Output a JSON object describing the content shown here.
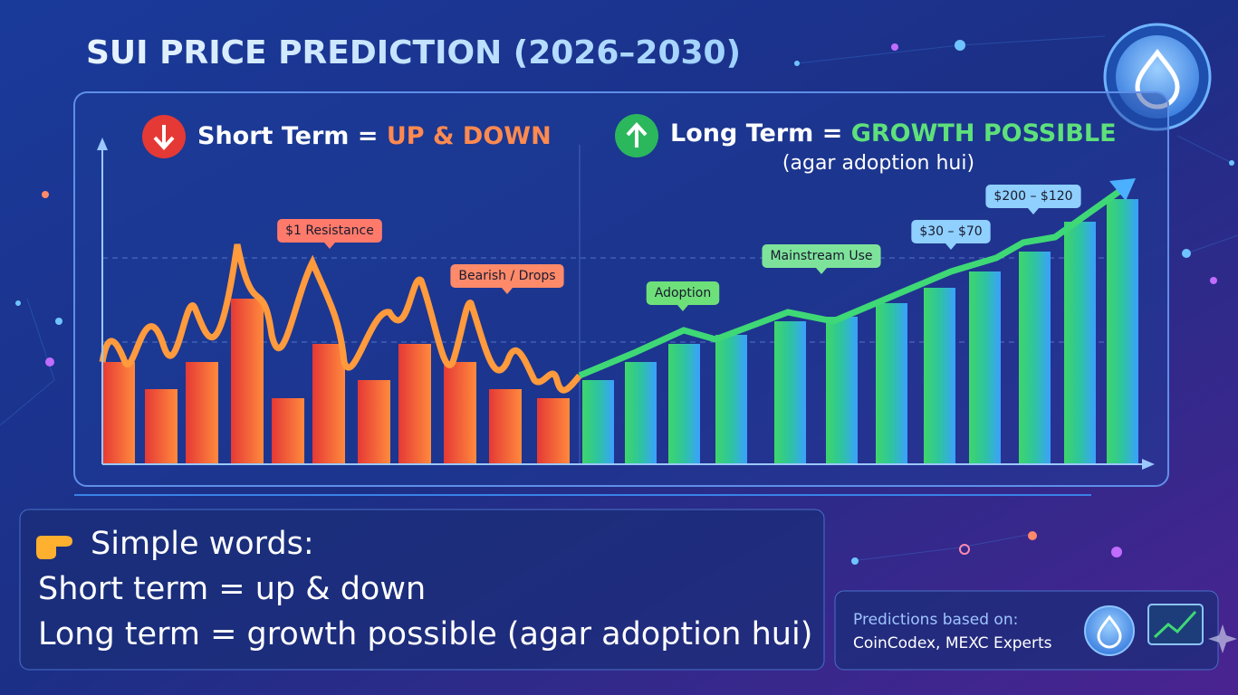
{
  "title": "SUI PRICE PREDICTION (2026–2030)",
  "short_term": {
    "label": "Short Term =",
    "value": "UP & DOWN"
  },
  "long_term": {
    "label": "Long Term =",
    "value": "GROWTH POSSIBLE",
    "note": "(agar adoption hui)"
  },
  "annotations": [
    "$1 Resistance",
    "Bearish / Drops",
    "Adoption",
    "Mainstream Use",
    "$30 – $70",
    "$200 – $120"
  ],
  "summary": {
    "heading": "Simple words:",
    "lines": [
      "Short term = up & down",
      "Long term = growth possible (agar adoption hui)"
    ]
  },
  "source": {
    "label": "Predictions based on:",
    "text": "CoinCodex, MEXC Experts"
  }
}
